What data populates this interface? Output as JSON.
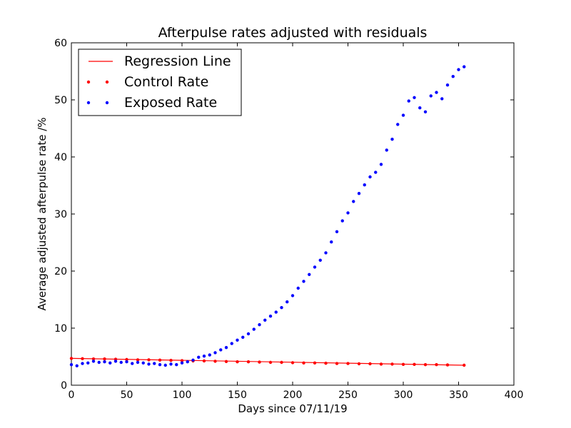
{
  "chart_data": {
    "type": "scatter",
    "title": "Afterpulse rates adjusted with residuals",
    "xlabel": "Days since 07/11/19",
    "ylabel": "Average adjusted afterpulse rate  /%",
    "xlim": [
      0,
      400
    ],
    "ylim": [
      0,
      60
    ],
    "xticks": [
      0,
      50,
      100,
      150,
      200,
      250,
      300,
      350,
      400
    ],
    "yticks": [
      0,
      10,
      20,
      30,
      40,
      50,
      60
    ],
    "grid": false,
    "legend_position": "top-left",
    "series": [
      {
        "name": "Regression Line",
        "kind": "line",
        "color": "#ff0000",
        "x": [
          0,
          355
        ],
        "y": [
          4.7,
          3.5
        ]
      },
      {
        "name": "Control Rate",
        "kind": "scatter",
        "color": "#ff0000",
        "x": [
          0,
          10,
          20,
          30,
          40,
          50,
          60,
          70,
          80,
          90,
          100,
          110,
          120,
          130,
          140,
          150,
          160,
          170,
          180,
          190,
          200,
          210,
          220,
          230,
          240,
          250,
          260,
          270,
          280,
          290,
          300,
          310,
          320,
          330,
          340,
          355
        ],
        "y": [
          4.7,
          4.65,
          4.6,
          4.6,
          4.55,
          4.5,
          4.45,
          4.45,
          4.4,
          4.35,
          4.3,
          4.25,
          4.25,
          4.2,
          4.15,
          4.1,
          4.1,
          4.05,
          4.0,
          4.0,
          3.95,
          3.9,
          3.9,
          3.85,
          3.8,
          3.8,
          3.75,
          3.75,
          3.7,
          3.7,
          3.65,
          3.65,
          3.6,
          3.6,
          3.55,
          3.5
        ]
      },
      {
        "name": "Exposed Rate",
        "kind": "scatter",
        "color": "#0000ff",
        "x": [
          0,
          5,
          10,
          15,
          20,
          25,
          30,
          35,
          40,
          45,
          50,
          55,
          60,
          65,
          70,
          75,
          80,
          85,
          90,
          95,
          100,
          105,
          110,
          115,
          120,
          125,
          130,
          135,
          140,
          145,
          150,
          155,
          160,
          165,
          170,
          175,
          180,
          185,
          190,
          195,
          200,
          205,
          210,
          215,
          220,
          225,
          230,
          235,
          240,
          245,
          250,
          255,
          260,
          265,
          270,
          275,
          280,
          285,
          290,
          295,
          300,
          305,
          310,
          315,
          320,
          325,
          330,
          335,
          340,
          345,
          350,
          355
        ],
        "y": [
          3.6,
          3.4,
          3.8,
          3.9,
          4.2,
          4.0,
          4.1,
          3.9,
          4.2,
          4.0,
          4.1,
          3.8,
          4.0,
          3.9,
          3.7,
          3.8,
          3.6,
          3.5,
          3.7,
          3.6,
          3.9,
          4.1,
          4.4,
          4.9,
          5.1,
          5.3,
          5.7,
          6.2,
          6.6,
          7.3,
          7.9,
          8.4,
          9.0,
          9.8,
          10.6,
          11.4,
          12.1,
          12.8,
          13.6,
          14.6,
          15.7,
          17.0,
          18.2,
          19.4,
          20.7,
          21.9,
          23.2,
          25.1,
          26.9,
          28.8,
          30.2,
          32.2,
          33.6,
          35.1,
          36.5,
          37.3,
          38.7,
          41.2,
          43.1,
          45.7,
          47.3,
          49.8,
          50.4,
          48.6,
          47.9,
          50.7,
          51.3,
          50.2,
          52.6,
          54.1,
          55.3,
          55.8
        ]
      }
    ]
  }
}
